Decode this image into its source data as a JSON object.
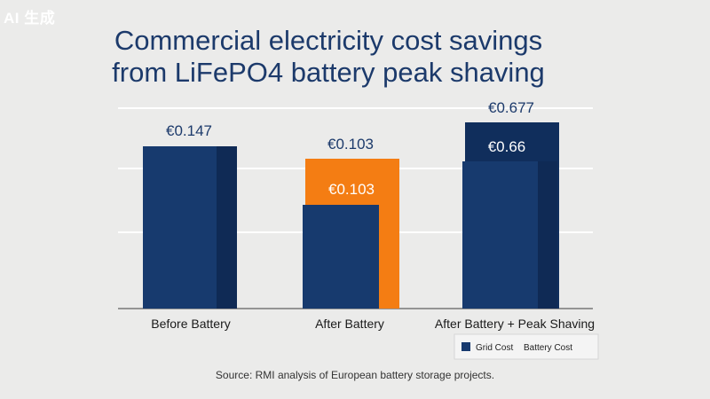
{
  "watermark": "AI 生成",
  "chart_data": {
    "type": "bar",
    "title_line1": "Commercial electricity cost savings",
    "title_line2": "from LiFePO4   battery peak shaving",
    "categories": [
      "Before Battery",
      "After Battery",
      "After Battery + Peak Shaving"
    ],
    "series": [
      {
        "name": "Grid Cost",
        "values": [
          0.147,
          0.103,
          0.66
        ],
        "labels": [
          "€0.147",
          "€0.103",
          "€0.66"
        ]
      },
      {
        "name": "Battery Cost",
        "values": [
          null,
          0.103,
          0.677
        ],
        "labels": [
          "",
          "€0.103",
          "€0.677"
        ]
      }
    ],
    "top_labels": [
      "€0.147",
      "€0.103",
      "€0.677"
    ],
    "colors": {
      "grid": "#173a6e",
      "grid_dark": "#0f2a55",
      "battery": "#f47d13",
      "battery_navy": "#102e5c",
      "gridline": "#ffffff",
      "axis": "#777777"
    },
    "legend": [
      "Grid Cost",
      "Battery Cost"
    ],
    "legend_position": "bottom-right",
    "grid": true,
    "source": "Source: RMI analysis of European battery storage projects."
  }
}
